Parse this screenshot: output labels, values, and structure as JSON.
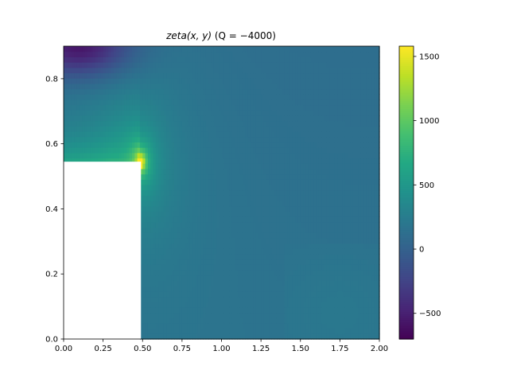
{
  "chart_data": {
    "type": "heatmap",
    "title": {
      "prefix": "zeta(x, y)",
      "suffix": " (Q = −4000)"
    },
    "xlabel": "",
    "ylabel": "",
    "xlim": [
      0.0,
      2.0
    ],
    "ylim": [
      0.0,
      0.9
    ],
    "x_ticks": [
      0.0,
      0.25,
      0.5,
      0.75,
      1.0,
      1.25,
      1.5,
      1.75,
      2.0
    ],
    "x_tick_labels": [
      "0.00",
      "0.25",
      "0.50",
      "0.75",
      "1.00",
      "1.25",
      "1.50",
      "1.75",
      "2.00"
    ],
    "y_ticks": [
      0.0,
      0.2,
      0.4,
      0.6,
      0.8
    ],
    "y_tick_labels": [
      "0.0",
      "0.2",
      "0.4",
      "0.6",
      "0.8"
    ],
    "masked_region": {
      "x": [
        0.0,
        0.49
      ],
      "y": [
        0.0,
        0.545
      ]
    },
    "colorbar": {
      "colormap": "viridis",
      "vmin": -700,
      "vmax": 1580,
      "ticks": [
        -500,
        0,
        500,
        1000,
        1500
      ],
      "tick_labels": [
        "−500",
        "0",
        "500",
        "1000",
        "1500"
      ]
    },
    "grid": false
  }
}
